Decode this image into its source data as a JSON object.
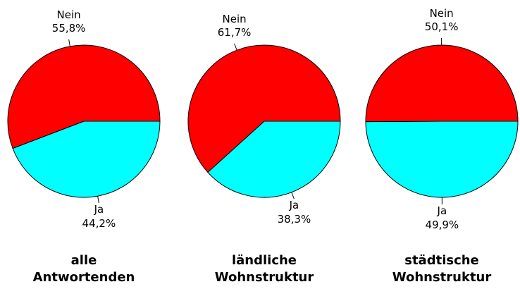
{
  "chart_data": [
    {
      "type": "pie",
      "title": "alle Antwortenden",
      "categories": [
        "Ja",
        "Nein"
      ],
      "values": [
        44.2,
        55.8
      ],
      "value_labels": [
        "44,2%",
        "55,8%"
      ],
      "colors": [
        "#00ffff",
        "#ff0000"
      ]
    },
    {
      "type": "pie",
      "title": "ländliche Wohnstruktur",
      "categories": [
        "Ja",
        "Nein"
      ],
      "values": [
        38.3,
        61.7
      ],
      "value_labels": [
        "38,3%",
        "61,7%"
      ],
      "colors": [
        "#00ffff",
        "#ff0000"
      ]
    },
    {
      "type": "pie",
      "title": "städtische Wohnstruktur",
      "categories": [
        "Ja",
        "Nein"
      ],
      "values": [
        49.9,
        50.1
      ],
      "value_labels": [
        "49,9%",
        "50,1%"
      ],
      "colors": [
        "#00ffff",
        "#ff0000"
      ]
    }
  ]
}
